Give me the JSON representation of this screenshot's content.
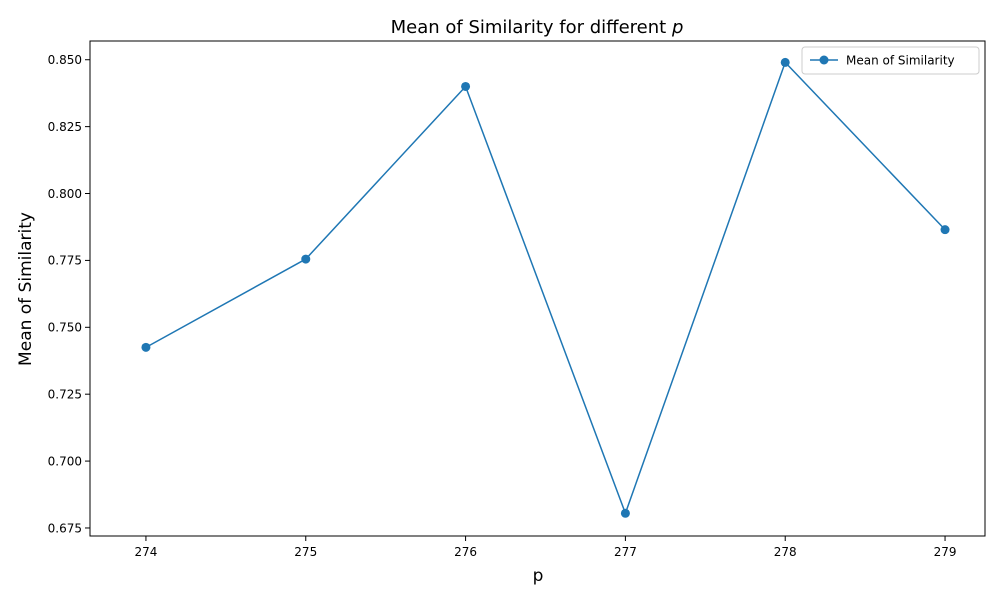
{
  "chart_data": {
    "type": "line",
    "title": "Mean of Similarity for different",
    "title_math": "p",
    "xlabel": "p",
    "ylabel": "Mean of Similarity",
    "x": [
      274,
      275,
      276,
      277,
      278,
      279
    ],
    "series": [
      {
        "name": "Mean of Similarity",
        "values": [
          0.7425,
          0.7755,
          0.84,
          0.6805,
          0.849,
          0.7865
        ],
        "color": "#1f77b4",
        "marker": "circle"
      }
    ],
    "xlim": [
      273.65,
      279.25
    ],
    "ylim": [
      0.672,
      0.857
    ],
    "xticks": [
      274,
      275,
      276,
      277,
      278,
      279
    ],
    "yticks": [
      0.675,
      0.7,
      0.725,
      0.75,
      0.775,
      0.8,
      0.825,
      0.85
    ],
    "ytick_labels": [
      "0.675",
      "0.700",
      "0.725",
      "0.750",
      "0.775",
      "0.800",
      "0.825",
      "0.850"
    ],
    "grid": false,
    "legend_position": "top-right"
  }
}
